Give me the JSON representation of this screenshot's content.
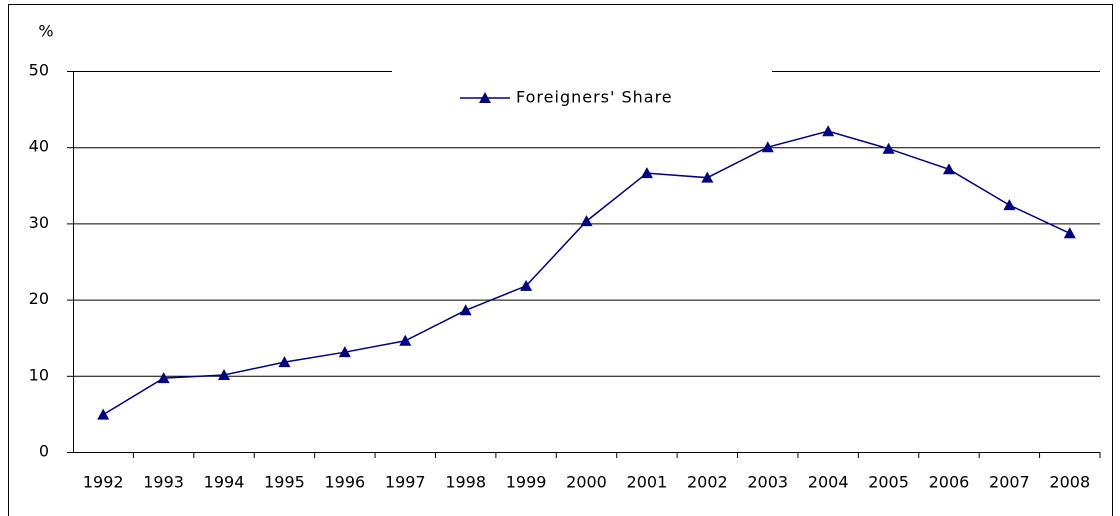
{
  "chart_data": {
    "type": "line",
    "y_label": "%",
    "categories": [
      "1992",
      "1993",
      "1994",
      "1995",
      "1996",
      "1997",
      "1998",
      "1999",
      "2000",
      "2001",
      "2002",
      "2003",
      "2004",
      "2005",
      "2006",
      "2007",
      "2008"
    ],
    "series": [
      {
        "name": "Foreigners' Share",
        "color": "#000080",
        "values": [
          4.9,
          9.7,
          10.1,
          11.8,
          13.1,
          14.6,
          18.6,
          21.8,
          30.3,
          36.6,
          36.0,
          40.0,
          42.1,
          39.8,
          37.1,
          32.4,
          28.7
        ]
      }
    ],
    "ylim": [
      0,
      50
    ],
    "yticks": [
      0,
      10,
      20,
      30,
      40,
      50
    ],
    "grid": true,
    "legend": "top"
  }
}
